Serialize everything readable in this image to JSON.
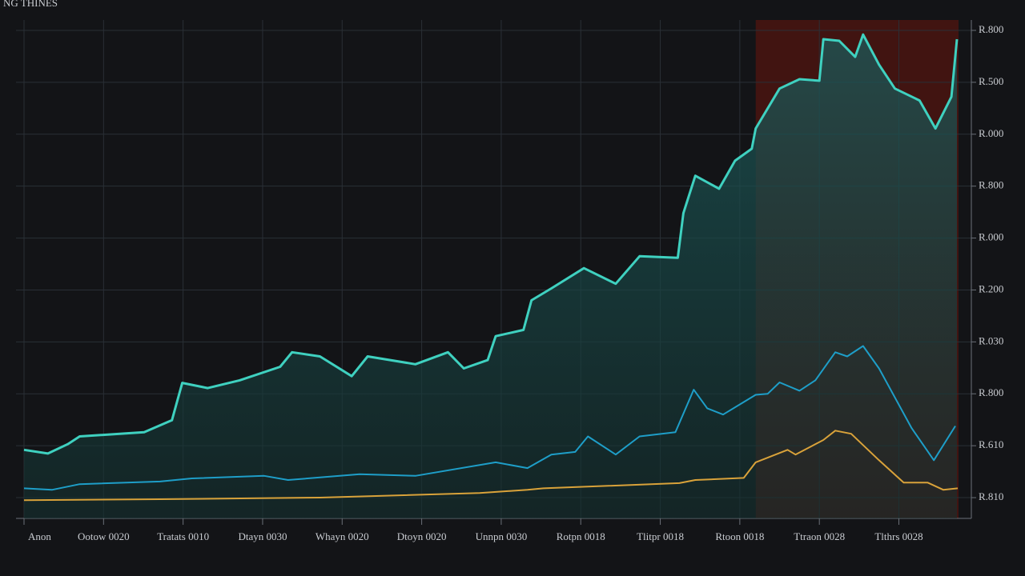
{
  "chart_data": {
    "type": "line",
    "title": "NG THINES",
    "grid": true,
    "xlim": [
      0,
      11.75
    ],
    "ylim": [
      0.6,
      10.2
    ],
    "xticks": [
      {
        "value": 0,
        "label": "Anon"
      },
      {
        "value": 1,
        "label": "Ootow 0020"
      },
      {
        "value": 2,
        "label": "Tratats 0010"
      },
      {
        "value": 3,
        "label": "Dtayn 0030"
      },
      {
        "value": 4,
        "label": "Whayn 0020"
      },
      {
        "value": 5,
        "label": "Dtoyn 0020"
      },
      {
        "value": 6,
        "label": "Unnpn 0030"
      },
      {
        "value": 7,
        "label": "Rotpn 0018"
      },
      {
        "value": 8,
        "label": "Tlitpr 0018"
      },
      {
        "value": 9,
        "label": "Rtoon 0018"
      },
      {
        "value": 10,
        "label": "Ttraon 0028"
      },
      {
        "value": 11,
        "label": "Tlthrs 0028"
      }
    ],
    "yticks": [
      {
        "value": 1,
        "label": "R.810"
      },
      {
        "value": 2,
        "label": "R.610"
      },
      {
        "value": 3,
        "label": "R.800"
      },
      {
        "value": 4,
        "label": "R.030"
      },
      {
        "value": 5,
        "label": "R.200"
      },
      {
        "value": 6,
        "label": "R.000"
      },
      {
        "value": 7,
        "label": "R.800"
      },
      {
        "value": 8,
        "label": "R.000"
      },
      {
        "value": 9,
        "label": "R.500"
      },
      {
        "value": 10,
        "label": "R.800"
      }
    ],
    "shaded_region": {
      "x": [
        9.2,
        11.75
      ],
      "color": "#4a1410"
    },
    "series": [
      {
        "color": "#3fd1c0",
        "area": true,
        "x": [
          0,
          0.3,
          0.55,
          0.7,
          1.51,
          1.86,
          1.99,
          2.31,
          2.71,
          3.22,
          3.37,
          3.72,
          4.12,
          4.32,
          4.92,
          5.33,
          5.53,
          5.83,
          5.93,
          6.28,
          6.38,
          6.63,
          7.04,
          7.44,
          7.74,
          8.22,
          8.29,
          8.44,
          8.74,
          8.94,
          9.15,
          9.2,
          9.5,
          9.75,
          10.0,
          10.05,
          10.25,
          10.45,
          10.55,
          10.75,
          10.95,
          11.26,
          11.46,
          11.66,
          11.73
        ],
        "values": [
          1.92,
          1.85,
          2.03,
          2.18,
          2.26,
          2.49,
          3.21,
          3.11,
          3.26,
          3.52,
          3.8,
          3.72,
          3.34,
          3.72,
          3.57,
          3.8,
          3.49,
          3.65,
          4.11,
          4.23,
          4.8,
          5.03,
          5.42,
          5.12,
          5.65,
          5.62,
          6.48,
          7.2,
          6.95,
          7.49,
          7.72,
          8.11,
          8.88,
          9.06,
          9.03,
          9.83,
          9.8,
          9.49,
          9.92,
          9.34,
          8.88,
          8.65,
          8.11,
          8.72,
          9.83
        ]
      },
      {
        "color": "#1e9ec8",
        "x": [
          0,
          0.35,
          0.7,
          1.71,
          2.11,
          3.02,
          3.32,
          4.22,
          4.92,
          5.93,
          6.33,
          6.63,
          6.93,
          7.09,
          7.44,
          7.74,
          8.19,
          8.42,
          8.59,
          8.79,
          9.2,
          9.35,
          9.5,
          9.75,
          9.95,
          10.2,
          10.35,
          10.55,
          10.75,
          11.16,
          11.44,
          11.71
        ],
        "values": [
          1.18,
          1.15,
          1.26,
          1.31,
          1.37,
          1.42,
          1.34,
          1.45,
          1.42,
          1.68,
          1.57,
          1.83,
          1.88,
          2.18,
          1.83,
          2.18,
          2.26,
          3.08,
          2.72,
          2.6,
          2.98,
          3.0,
          3.22,
          3.06,
          3.26,
          3.8,
          3.72,
          3.92,
          3.49,
          2.34,
          1.72,
          2.38
        ]
      },
      {
        "color": "#d9a23a",
        "x": [
          0,
          1.71,
          3.72,
          5.73,
          6.33,
          6.53,
          8.24,
          8.44,
          9.05,
          9.2,
          9.6,
          9.7,
          10.05,
          10.2,
          10.4,
          10.75,
          11.06,
          11.36,
          11.56,
          11.74
        ],
        "values": [
          0.95,
          0.97,
          1.0,
          1.09,
          1.15,
          1.18,
          1.28,
          1.34,
          1.38,
          1.68,
          1.92,
          1.83,
          2.11,
          2.29,
          2.23,
          1.72,
          1.29,
          1.29,
          1.15,
          1.18
        ]
      }
    ]
  }
}
